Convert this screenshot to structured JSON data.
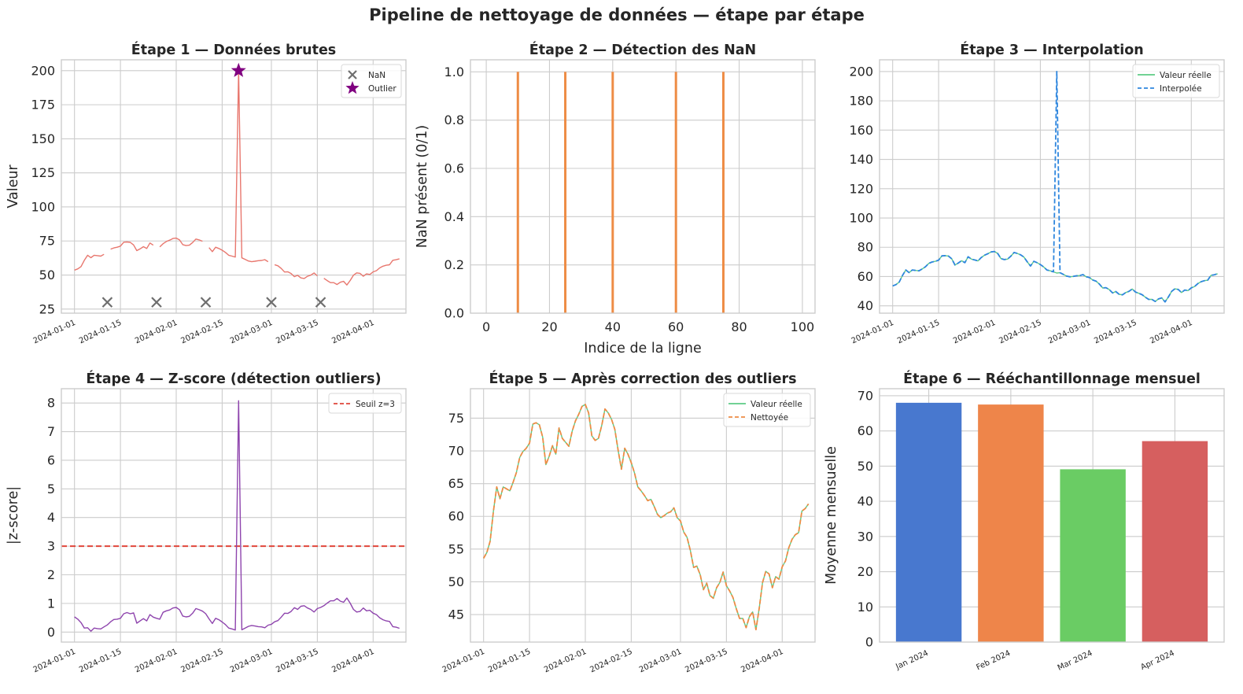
{
  "figure": {
    "title": "Pipeline de nettoyage de données — étape par étape",
    "colors": {
      "raw": "#e8776e",
      "orange": "#ee8c45",
      "cyan": "#2ba6c9",
      "blueDash": "#2e86de",
      "green": "#5dcb85",
      "purple": "#8e44ad",
      "red": "#e0463a",
      "gray": "#6e6e6e",
      "star": "#800080"
    }
  },
  "chart_data": [
    {
      "id": "p1",
      "type": "line",
      "title": "Étape 1 — Données brutes",
      "xlabel": "",
      "ylabel": "Valeur",
      "xlim": [
        -4,
        101
      ],
      "ylim": [
        22,
        208
      ],
      "yticks": [
        25,
        50,
        75,
        100,
        125,
        150,
        175,
        200
      ],
      "xticks": [
        {
          "x": 0,
          "label": "2024-01-01"
        },
        {
          "x": 14,
          "label": "2024-01-15"
        },
        {
          "x": 31,
          "label": "2024-02-01"
        },
        {
          "x": 45,
          "label": "2024-02-15"
        },
        {
          "x": 60,
          "label": "2024-03-01"
        },
        {
          "x": 74,
          "label": "2024-03-15"
        },
        {
          "x": 91,
          "label": "2024-04-01"
        }
      ],
      "series": [
        {
          "name": "Valeur",
          "color": "#e8776e",
          "width": 1.4,
          "values": "raw"
        }
      ],
      "markers": [
        {
          "name": "NaN",
          "symbol": "x",
          "color": "#6e6e6e",
          "points": [
            [
              10,
              30
            ],
            [
              25,
              30
            ],
            [
              40,
              30
            ],
            [
              60,
              30
            ],
            [
              75,
              30
            ]
          ]
        },
        {
          "name": "Outlier",
          "symbol": "star",
          "color": "#800080",
          "points": [
            [
              50,
              200
            ]
          ]
        }
      ],
      "legend": {
        "position": "top-right",
        "items": [
          {
            "label": "NaN",
            "symbol": "x",
            "color": "#6e6e6e"
          },
          {
            "label": "Outlier",
            "symbol": "star",
            "color": "#800080"
          }
        ]
      }
    },
    {
      "id": "p2",
      "type": "bar",
      "title": "Étape 2 — Détection des NaN",
      "xlabel": "Indice de la ligne",
      "ylabel": "NaN présent (0/1)",
      "xlim": [
        -5,
        104
      ],
      "ylim": [
        0,
        1.05
      ],
      "yticks": [
        {
          "v": 0,
          "label": "0.0"
        },
        {
          "v": 0.2,
          "label": "0.2"
        },
        {
          "v": 0.4,
          "label": "0.4"
        },
        {
          "v": 0.6,
          "label": "0.6"
        },
        {
          "v": 0.8,
          "label": "0.8"
        },
        {
          "v": 1.0,
          "label": "1.0"
        }
      ],
      "xticks": [
        {
          "x": 0,
          "label": "0"
        },
        {
          "x": 20,
          "label": "20"
        },
        {
          "x": 40,
          "label": "40"
        },
        {
          "x": 60,
          "label": "60"
        },
        {
          "x": 80,
          "label": "80"
        },
        {
          "x": 100,
          "label": "100"
        }
      ],
      "nan_indices": [
        10,
        25,
        40,
        60,
        75
      ],
      "values_at_nan": 1
    },
    {
      "id": "p3",
      "type": "line",
      "title": "Étape 3 — Interpolation",
      "xlabel": "",
      "ylabel": "",
      "xlim": [
        -4,
        101
      ],
      "ylim": [
        35,
        208
      ],
      "yticks": [
        40,
        60,
        80,
        100,
        120,
        140,
        160,
        180,
        200
      ],
      "xticks": [
        {
          "x": 0,
          "label": "2024-01-01"
        },
        {
          "x": 14,
          "label": "2024-01-15"
        },
        {
          "x": 31,
          "label": "2024-02-01"
        },
        {
          "x": 45,
          "label": "2024-02-15"
        },
        {
          "x": 60,
          "label": "2024-03-01"
        },
        {
          "x": 74,
          "label": "2024-03-15"
        },
        {
          "x": 91,
          "label": "2024-04-01"
        }
      ],
      "series": [
        {
          "name": "Valeur réelle",
          "color": "#5dcb85",
          "width": 1.4,
          "values": "clean"
        },
        {
          "name": "Interpolée",
          "color": "#2e86de",
          "width": 1.8,
          "dash": "6,3",
          "values": "interp"
        }
      ],
      "legend": {
        "position": "top-right",
        "items": [
          {
            "label": "Valeur réelle",
            "symbol": "line",
            "color": "#5dcb85"
          },
          {
            "label": "Interpolée",
            "symbol": "dash",
            "color": "#2e86de"
          }
        ]
      }
    },
    {
      "id": "p4",
      "type": "line",
      "title": "Étape 4 — Z-score (détection outliers)",
      "xlabel": "",
      "ylabel": "|z-score|",
      "xlim": [
        -4,
        101
      ],
      "ylim": [
        -0.35,
        8.5
      ],
      "yticks": [
        0,
        1,
        2,
        3,
        4,
        5,
        6,
        7,
        8
      ],
      "xticks": [
        {
          "x": 0,
          "label": "2024-01-01"
        },
        {
          "x": 14,
          "label": "2024-01-15"
        },
        {
          "x": 31,
          "label": "2024-02-01"
        },
        {
          "x": 45,
          "label": "2024-02-15"
        },
        {
          "x": 60,
          "label": "2024-03-01"
        },
        {
          "x": 74,
          "label": "2024-03-15"
        },
        {
          "x": 91,
          "label": "2024-04-01"
        }
      ],
      "series": [
        {
          "name": "|z-score|",
          "color": "#8e44ad",
          "width": 1.4,
          "values": "zscore"
        }
      ],
      "threshold": {
        "value": 3,
        "label": "Seuil z=3",
        "color": "#e0463a"
      },
      "legend": {
        "position": "top-right",
        "items": [
          {
            "label": "Seuil z=3",
            "symbol": "dash",
            "color": "#e0463a"
          }
        ]
      }
    },
    {
      "id": "p5",
      "type": "line",
      "title": "Étape 5 — Après correction des outliers",
      "xlabel": "",
      "ylabel": "",
      "xlim": [
        -4,
        101
      ],
      "ylim": [
        40.8,
        79.5
      ],
      "yticks": [
        45,
        50,
        55,
        60,
        65,
        70,
        75
      ],
      "xticks": [
        {
          "x": 0,
          "label": "2024-01-01"
        },
        {
          "x": 14,
          "label": "2024-01-15"
        },
        {
          "x": 31,
          "label": "2024-02-01"
        },
        {
          "x": 45,
          "label": "2024-02-15"
        },
        {
          "x": 60,
          "label": "2024-03-01"
        },
        {
          "x": 74,
          "label": "2024-03-15"
        },
        {
          "x": 91,
          "label": "2024-04-01"
        }
      ],
      "series": [
        {
          "name": "Valeur réelle",
          "color": "#5dcb85",
          "width": 1.4,
          "values": "clean"
        },
        {
          "name": "Nettoyée",
          "color": "#ee8c45",
          "width": 1.8,
          "dash": "6,3",
          "values": "cleaned"
        }
      ],
      "legend": {
        "position": "top-right",
        "items": [
          {
            "label": "Valeur réelle",
            "symbol": "line",
            "color": "#5dcb85"
          },
          {
            "label": "Nettoyée",
            "symbol": "dash",
            "color": "#ee8c45"
          }
        ]
      }
    },
    {
      "id": "p6",
      "type": "bar",
      "title": "Étape 6 — Rééchantillonnage mensuel",
      "xlabel": "",
      "ylabel": "Moyenne mensuelle",
      "ylim": [
        0,
        72
      ],
      "yticks": [
        0,
        10,
        20,
        30,
        40,
        50,
        60,
        70
      ],
      "categories": [
        "Jan 2024",
        "Feb 2024",
        "Mar 2024",
        "Apr 2024"
      ],
      "values": [
        68,
        67.5,
        49.1,
        57.1
      ],
      "colors": [
        "#4878cf",
        "#ee854a",
        "#6acc64",
        "#d65f5f"
      ]
    }
  ],
  "series_data": {
    "clean": [
      53.6,
      54.5,
      56.2,
      60.8,
      64.5,
      62.7,
      64.5,
      64.2,
      63.9,
      65.2,
      66.7,
      69.0,
      69.9,
      70.4,
      71.2,
      74.1,
      74.3,
      74.0,
      72.1,
      67.9,
      69.2,
      70.8,
      69.5,
      73.5,
      71.9,
      71.3,
      70.7,
      73.0,
      74.6,
      75.6,
      76.8,
      77.1,
      75.8,
      72.3,
      71.6,
      71.9,
      73.9,
      76.4,
      75.8,
      74.8,
      73.3,
      70.1,
      67.2,
      70.4,
      69.5,
      68.2,
      66.6,
      64.5,
      63.9,
      63.2,
      62.4,
      62.6,
      61.5,
      60.3,
      59.8,
      60.1,
      60.5,
      60.7,
      61.3,
      59.8,
      59.3,
      57.6,
      56.8,
      54.8,
      52.2,
      52.4,
      51.1,
      48.8,
      49.8,
      47.9,
      47.5,
      49.1,
      49.9,
      51.5,
      49.4,
      48.6,
      47.6,
      45.9,
      44.4,
      44.4,
      43.0,
      44.7,
      45.4,
      42.7,
      46.0,
      49.9,
      51.6,
      51.2,
      49.1,
      50.8,
      50.4,
      52.3,
      53.2,
      55.2,
      56.5,
      57.2,
      57.5,
      60.8,
      61.2,
      61.9
    ],
    "raw_outlier": {
      "index": 50,
      "value": 200
    },
    "nan_indices": [
      10,
      25,
      40,
      60,
      75
    ],
    "zscore": [
      0.53,
      0.45,
      0.33,
      0.14,
      0.15,
      0.03,
      0.14,
      0.12,
      0.11,
      0.18,
      0.25,
      0.36,
      0.44,
      0.45,
      0.48,
      0.64,
      0.68,
      0.64,
      0.67,
      0.31,
      0.39,
      0.47,
      0.39,
      0.61,
      0.52,
      0.48,
      0.45,
      0.69,
      0.74,
      0.77,
      0.84,
      0.86,
      0.78,
      0.56,
      0.53,
      0.55,
      0.66,
      0.82,
      0.78,
      0.73,
      0.64,
      0.46,
      0.3,
      0.48,
      0.43,
      0.35,
      0.26,
      0.14,
      0.11,
      0.07,
      8.08,
      0.08,
      0.14,
      0.2,
      0.23,
      0.21,
      0.19,
      0.18,
      0.15,
      0.24,
      0.27,
      0.36,
      0.4,
      0.52,
      0.66,
      0.65,
      0.72,
      0.85,
      0.79,
      0.9,
      0.92,
      0.84,
      0.79,
      0.7,
      0.82,
      0.86,
      0.92,
      1.01,
      1.09,
      1.09,
      1.17,
      1.08,
      1.04,
      1.19,
      1.01,
      0.79,
      0.7,
      0.72,
      0.84,
      0.74,
      0.76,
      0.66,
      0.61,
      0.5,
      0.43,
      0.39,
      0.37,
      0.19,
      0.17,
      0.13
    ]
  }
}
